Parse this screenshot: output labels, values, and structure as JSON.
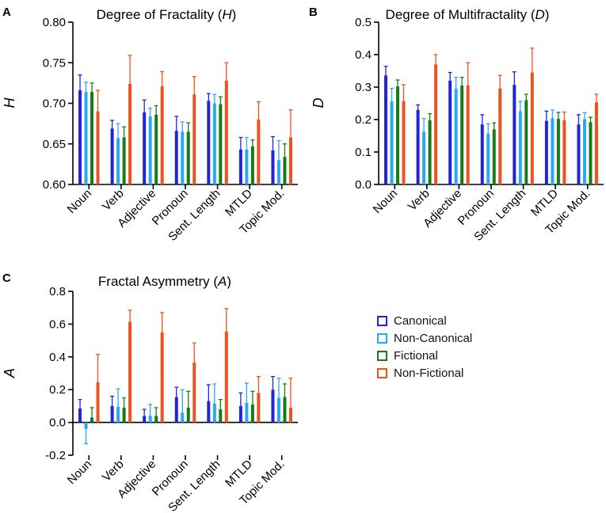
{
  "colors": {
    "Canonical": "#2323d8",
    "Non-Canonical": "#29a9f0",
    "Fictional": "#1a7a1a",
    "Non-Fictional": "#f0521e"
  },
  "legend": [
    {
      "name": "Canonical",
      "color": "#2323d8"
    },
    {
      "name": "Non-Canonical",
      "color": "#29a9f0"
    },
    {
      "name": "Fictional",
      "color": "#1a7a1a"
    },
    {
      "name": "Non-Fictional",
      "color": "#f0521e"
    }
  ],
  "chart_data": [
    {
      "panel": "A",
      "type": "bar",
      "title": "Degree of Fractality",
      "title_symbol": "H",
      "ylabel": "H",
      "ylim": [
        0.6,
        0.8
      ],
      "yticks": [
        "0.60",
        "0.65",
        "0.70",
        "0.75",
        "0.80"
      ],
      "ytick_values": [
        0.6,
        0.65,
        0.7,
        0.75,
        0.8
      ],
      "categories": [
        "Noun",
        "Verb",
        "Adjective",
        "Pronoun",
        "Sent. Length",
        "MTLD",
        "Topic Mod."
      ],
      "series": [
        {
          "name": "Canonical",
          "values": [
            0.716,
            0.669,
            0.689,
            0.666,
            0.703,
            0.643,
            0.642
          ],
          "errors": [
            0.019,
            0.01,
            0.015,
            0.018,
            0.009,
            0.015,
            0.017
          ]
        },
        {
          "name": "Non-Canonical",
          "values": [
            0.714,
            0.657,
            0.684,
            0.665,
            0.7,
            0.643,
            0.63
          ],
          "errors": [
            0.012,
            0.018,
            0.01,
            0.012,
            0.011,
            0.015,
            0.024
          ]
        },
        {
          "name": "Fictional",
          "values": [
            0.714,
            0.658,
            0.686,
            0.665,
            0.699,
            0.647,
            0.634
          ],
          "errors": [
            0.011,
            0.013,
            0.011,
            0.011,
            0.009,
            0.008,
            0.016
          ]
        },
        {
          "name": "Non-Fictional",
          "values": [
            0.69,
            0.724,
            0.721,
            0.711,
            0.728,
            0.68,
            0.658
          ],
          "errors": [
            0.026,
            0.035,
            0.018,
            0.022,
            0.022,
            0.022,
            0.034
          ]
        }
      ]
    },
    {
      "panel": "B",
      "type": "bar",
      "title": "Degree of Multifractality",
      "title_symbol": "D",
      "ylabel": "D",
      "ylim": [
        0.0,
        0.5
      ],
      "yticks": [
        "0.0",
        "0.1",
        "0.2",
        "0.3",
        "0.4",
        "0.5"
      ],
      "ytick_values": [
        0.0,
        0.1,
        0.2,
        0.3,
        0.4,
        0.5
      ],
      "categories": [
        "Noun",
        "Verb",
        "Adjective",
        "Pronoun",
        "Sent. Length",
        "MTLD",
        "Topic Mod."
      ],
      "series": [
        {
          "name": "Canonical",
          "values": [
            0.336,
            0.23,
            0.32,
            0.185,
            0.307,
            0.196,
            0.185
          ],
          "errors": [
            0.028,
            0.015,
            0.025,
            0.03,
            0.04,
            0.03,
            0.03
          ]
        },
        {
          "name": "Non-Canonical",
          "values": [
            0.256,
            0.163,
            0.295,
            0.157,
            0.226,
            0.204,
            0.201
          ],
          "errors": [
            0.04,
            0.04,
            0.035,
            0.03,
            0.03,
            0.025,
            0.02
          ]
        },
        {
          "name": "Fictional",
          "values": [
            0.302,
            0.198,
            0.305,
            0.17,
            0.26,
            0.202,
            0.192
          ],
          "errors": [
            0.02,
            0.02,
            0.025,
            0.02,
            0.018,
            0.02,
            0.015
          ]
        },
        {
          "name": "Non-Fictional",
          "values": [
            0.257,
            0.37,
            0.305,
            0.296,
            0.345,
            0.198,
            0.253
          ],
          "errors": [
            0.05,
            0.03,
            0.07,
            0.04,
            0.075,
            0.025,
            0.025
          ]
        }
      ]
    },
    {
      "panel": "C",
      "type": "bar",
      "title": "Fractal Asymmetry",
      "title_symbol": "A",
      "ylabel": "A",
      "ylim": [
        -0.2,
        0.8
      ],
      "yticks": [
        "-0.2",
        "0.0",
        "0.2",
        "0.4",
        "0.6",
        "0.8"
      ],
      "ytick_values": [
        -0.2,
        0.0,
        0.2,
        0.4,
        0.6,
        0.8
      ],
      "categories": [
        "Noun",
        "Verb",
        "Adjective",
        "Pronoun",
        "Sent. Length",
        "MTLD",
        "Topic Mod."
      ],
      "series": [
        {
          "name": "Canonical",
          "values": [
            0.085,
            0.1,
            0.04,
            0.155,
            0.13,
            0.1,
            0.2
          ],
          "errors": [
            0.055,
            0.06,
            0.04,
            0.06,
            0.1,
            0.08,
            0.08
          ]
        },
        {
          "name": "Non-Canonical",
          "values": [
            -0.04,
            0.095,
            0.04,
            0.06,
            0.115,
            0.12,
            0.15
          ],
          "errors": [
            0.09,
            0.11,
            0.07,
            0.14,
            0.12,
            0.12,
            0.12
          ]
        },
        {
          "name": "Fictional",
          "values": [
            0.03,
            0.09,
            0.04,
            0.09,
            0.08,
            0.11,
            0.155
          ],
          "errors": [
            0.06,
            0.06,
            0.05,
            0.1,
            0.06,
            0.08,
            0.08
          ]
        },
        {
          "name": "Non-Fictional",
          "values": [
            0.245,
            0.615,
            0.55,
            0.365,
            0.555,
            0.18,
            0.09
          ],
          "errors": [
            0.17,
            0.07,
            0.12,
            0.12,
            0.14,
            0.1,
            0.18
          ]
        }
      ]
    }
  ]
}
